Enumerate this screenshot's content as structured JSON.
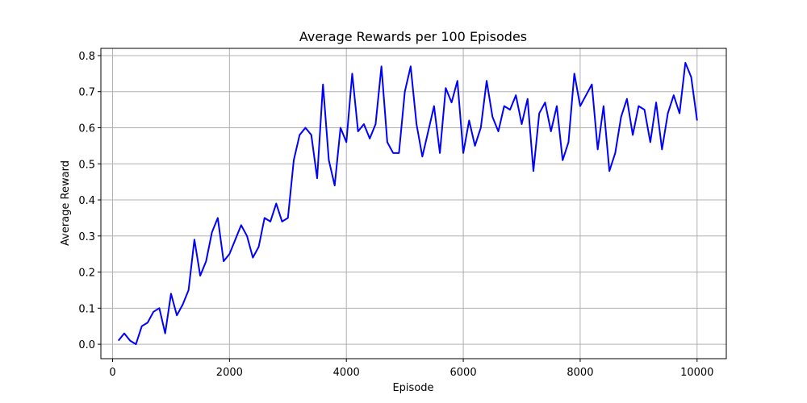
{
  "chart_data": {
    "type": "line",
    "title": "Average Rewards per 100 Episodes",
    "xlabel": "Episode",
    "ylabel": "Average Reward",
    "xlim": [
      -200,
      10500
    ],
    "ylim": [
      -0.04,
      0.82
    ],
    "xticks": [
      0,
      2000,
      4000,
      6000,
      8000,
      10000
    ],
    "xtick_labels": [
      "0",
      "2000",
      "4000",
      "6000",
      "8000",
      "10000"
    ],
    "yticks": [
      0.0,
      0.1,
      0.2,
      0.3,
      0.4,
      0.5,
      0.6,
      0.7,
      0.8
    ],
    "ytick_labels": [
      "0.0",
      "0.1",
      "0.2",
      "0.3",
      "0.4",
      "0.5",
      "0.6",
      "0.7",
      "0.8"
    ],
    "grid": true,
    "line_color": "#0000ff",
    "series": [
      {
        "x": [
          100,
          200,
          300,
          400,
          500,
          600,
          700,
          800,
          900,
          1000,
          1100,
          1200,
          1300,
          1400,
          1500,
          1600,
          1700,
          1800,
          1900,
          2000,
          2100,
          2200,
          2300,
          2400,
          2500,
          2600,
          2700,
          2800,
          2900,
          3000,
          3100,
          3200,
          3300,
          3400,
          3500,
          3600,
          3700,
          3800,
          3900,
          4000,
          4100,
          4200,
          4300,
          4400,
          4500,
          4600,
          4700,
          4800,
          4900,
          5000,
          5100,
          5200,
          5300,
          5400,
          5500,
          5600,
          5700,
          5800,
          5900,
          6000,
          6100,
          6200,
          6300,
          6400,
          6500,
          6600,
          6700,
          6800,
          6900,
          7000,
          7100,
          7200,
          7300,
          7400,
          7500,
          7600,
          7700,
          7800,
          7900,
          8000,
          8100,
          8200,
          8300,
          8400,
          8500,
          8600,
          8700,
          8800,
          8900,
          9000,
          9100,
          9200,
          9300,
          9400,
          9500,
          9600,
          9700,
          9800,
          9900,
          10000
        ],
        "values": [
          0.01,
          0.03,
          0.01,
          0.0,
          0.05,
          0.06,
          0.09,
          0.1,
          0.03,
          0.14,
          0.08,
          0.11,
          0.15,
          0.29,
          0.19,
          0.23,
          0.31,
          0.35,
          0.23,
          0.25,
          0.29,
          0.33,
          0.3,
          0.24,
          0.27,
          0.35,
          0.34,
          0.39,
          0.34,
          0.35,
          0.51,
          0.58,
          0.6,
          0.58,
          0.46,
          0.72,
          0.51,
          0.44,
          0.6,
          0.56,
          0.75,
          0.59,
          0.61,
          0.57,
          0.61,
          0.77,
          0.56,
          0.53,
          0.53,
          0.7,
          0.77,
          0.61,
          0.52,
          0.59,
          0.66,
          0.53,
          0.71,
          0.67,
          0.73,
          0.53,
          0.62,
          0.55,
          0.6,
          0.73,
          0.63,
          0.59,
          0.66,
          0.65,
          0.69,
          0.61,
          0.68,
          0.48,
          0.64,
          0.67,
          0.59,
          0.66,
          0.51,
          0.56,
          0.75,
          0.66,
          0.69,
          0.72,
          0.54,
          0.66,
          0.48,
          0.53,
          0.63,
          0.68,
          0.58,
          0.66,
          0.65,
          0.56,
          0.67,
          0.54,
          0.64,
          0.69,
          0.64,
          0.78,
          0.74,
          0.62
        ]
      }
    ]
  }
}
